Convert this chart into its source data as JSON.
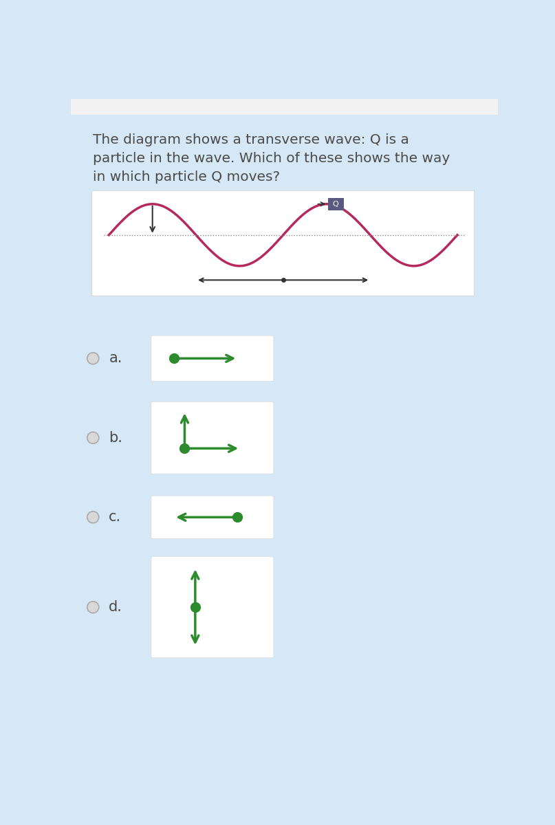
{
  "bg_color": "#d6e8f5",
  "top_bar_color": "#f0f0f0",
  "wave_box_color": "#ffffff",
  "option_box_color": "#ffffff",
  "title_text_line1": "The diagram shows a transverse wave: Q is a",
  "title_text_line2": "particle in the wave. Which of these shows the way",
  "title_text_line3": "in which particle Q moves?",
  "title_fontsize": 14.5,
  "title_color": "#4a4a4a",
  "wave_color": "#b5295e",
  "arrow_color": "#2d8b2d",
  "dark_arrow_color": "#333333",
  "q_box_color": "#5a5a80",
  "radio_color": "#d0d0d0",
  "radio_edge_color": "#aaaaaa",
  "label_color": "#4a4a4a",
  "label_fontsize": 15
}
